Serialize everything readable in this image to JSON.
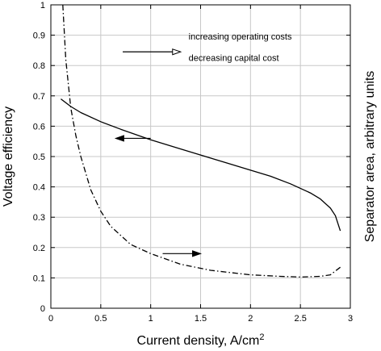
{
  "chart_data": {
    "type": "line",
    "title": "",
    "xlabel": "Current density, A/cm",
    "xlabel_superscript": "2",
    "ylabel_left": "Voltage efficiency",
    "ylabel_right": "Separator area, arbitrary units",
    "xlim": [
      0,
      3
    ],
    "ylim": [
      0,
      1
    ],
    "x_ticks": [
      "0",
      "0.5",
      "1",
      "1.5",
      "2",
      "2.5",
      "3"
    ],
    "y_ticks": [
      "0",
      "0.1",
      "0.2",
      "0.3",
      "0.4",
      "0.5",
      "0.6",
      "0.7",
      "0.8",
      "0.9",
      "1"
    ],
    "grid": true,
    "annotations": [
      "increasing operating costs",
      "decreasing capital cost"
    ],
    "series": [
      {
        "style": "solid",
        "axis": "left",
        "color": "#000000",
        "x": [
          0.1,
          0.2,
          0.3,
          0.5,
          0.7,
          1.0,
          1.3,
          1.5,
          1.8,
          2.0,
          2.2,
          2.4,
          2.6,
          2.7,
          2.8,
          2.85,
          2.9
        ],
        "y": [
          0.69,
          0.665,
          0.645,
          0.615,
          0.59,
          0.555,
          0.525,
          0.505,
          0.475,
          0.455,
          0.435,
          0.41,
          0.38,
          0.36,
          0.33,
          0.305,
          0.255
        ]
      },
      {
        "style": "dash-dot",
        "axis": "right",
        "color": "#000000",
        "x": [
          0.12,
          0.15,
          0.2,
          0.25,
          0.3,
          0.4,
          0.5,
          0.6,
          0.8,
          1.0,
          1.3,
          1.6,
          2.0,
          2.3,
          2.5,
          2.7,
          2.8,
          2.9
        ],
        "y": [
          1.0,
          0.82,
          0.66,
          0.57,
          0.5,
          0.39,
          0.32,
          0.27,
          0.21,
          0.18,
          0.145,
          0.125,
          0.11,
          0.105,
          0.103,
          0.105,
          0.11,
          0.135
        ]
      }
    ]
  }
}
